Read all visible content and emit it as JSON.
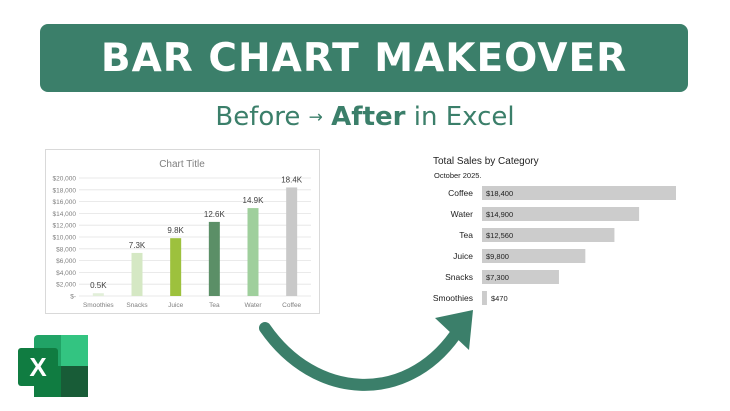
{
  "banner": {
    "title": "BAR CHART MAKEOVER"
  },
  "subtitle": {
    "before": "Before",
    "arrow": "→",
    "after": "After",
    "rest": "in Excel"
  },
  "chart_data": [
    {
      "type": "bar",
      "title": "Chart Title",
      "categories": [
        "Smoothies",
        "Snacks",
        "Juice",
        "Tea",
        "Water",
        "Coffee"
      ],
      "values": [
        470,
        7300,
        9800,
        12560,
        14900,
        18400
      ],
      "data_labels": [
        "0.5K",
        "7.3K",
        "9.8K",
        "12.6K",
        "14.9K",
        "18.4K"
      ],
      "colors": [
        "#e2efd9",
        "#d5e8c4",
        "#9dc13d",
        "#5b8f67",
        "#9fcf9c",
        "#c9c9c9"
      ],
      "y_ticks": [
        "$-",
        "$2,000",
        "$4,000",
        "$6,000",
        "$8,000",
        "$10,000",
        "$12,000",
        "$14,000",
        "$16,000",
        "$18,000",
        "$20,000"
      ],
      "ylim": [
        0,
        20000
      ],
      "grid": true,
      "orientation": "vertical"
    },
    {
      "type": "bar",
      "title": "Total Sales by Category",
      "subtitle": "October 2025.",
      "categories": [
        "Coffee",
        "Water",
        "Tea",
        "Juice",
        "Snacks",
        "Smoothies"
      ],
      "values": [
        18400,
        14900,
        12560,
        9800,
        7300,
        470
      ],
      "data_labels": [
        "$18,400",
        "$14,900",
        "$12,560",
        "$9,800",
        "$7,300",
        "$470"
      ],
      "bar_color": "#cccccc",
      "xlim": [
        0,
        18400
      ],
      "grid": false,
      "orientation": "horizontal"
    }
  ],
  "colors": {
    "brand": "#3b7f6a",
    "excel_green": "#1d7044"
  },
  "icons": {
    "excel": "excel-logo-icon",
    "arrow": "curved-arrow-icon"
  },
  "excel_logo": {
    "letter": "X"
  }
}
